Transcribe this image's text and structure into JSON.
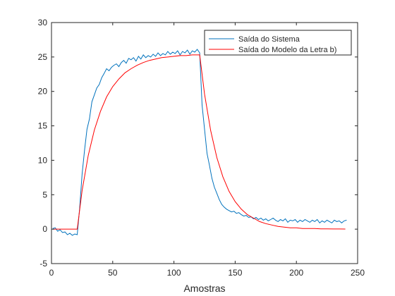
{
  "chart_data": {
    "type": "line",
    "title": "",
    "xlabel": "Amostras",
    "ylabel": "",
    "xlim": [
      0,
      250
    ],
    "ylim": [
      -5,
      30
    ],
    "xticks": [
      0,
      50,
      100,
      150,
      200,
      250
    ],
    "yticks": [
      -5,
      0,
      5,
      10,
      15,
      20,
      25,
      30
    ],
    "grid": false,
    "legend_position": "top-right",
    "series": [
      {
        "name": "Saída do Sistema",
        "color": "#0072BD",
        "x": [
          1,
          3,
          5,
          7,
          9,
          11,
          13,
          15,
          17,
          19,
          21,
          23,
          25,
          27,
          29,
          31,
          33,
          35,
          37,
          39,
          41,
          43,
          45,
          47,
          49,
          51,
          53,
          55,
          57,
          59,
          61,
          63,
          65,
          67,
          69,
          71,
          73,
          75,
          77,
          79,
          81,
          83,
          85,
          87,
          89,
          91,
          93,
          95,
          97,
          99,
          101,
          103,
          105,
          107,
          109,
          111,
          113,
          115,
          117,
          119,
          121,
          123,
          125,
          127,
          129,
          131,
          133,
          135,
          137,
          139,
          141,
          143,
          145,
          147,
          149,
          151,
          153,
          155,
          157,
          159,
          161,
          163,
          165,
          167,
          169,
          171,
          173,
          175,
          177,
          179,
          181,
          183,
          185,
          187,
          189,
          191,
          193,
          195,
          197,
          199,
          201,
          203,
          205,
          207,
          209,
          211,
          213,
          215,
          217,
          219,
          221,
          223,
          225,
          227,
          229,
          231,
          233,
          235,
          237,
          239,
          241
        ],
        "y": [
          0.1,
          0.2,
          -0.3,
          -0.1,
          -0.5,
          -0.4,
          -0.8,
          -0.6,
          -0.9,
          -0.7,
          -0.8,
          3.0,
          8.0,
          11.5,
          14.5,
          16.0,
          18.5,
          19.5,
          20.5,
          21.0,
          22.0,
          22.6,
          23.3,
          23.0,
          23.5,
          23.8,
          24.0,
          23.6,
          24.2,
          24.5,
          24.1,
          24.8,
          24.6,
          24.9,
          24.4,
          25.1,
          24.7,
          25.3,
          24.9,
          25.2,
          25.0,
          25.4,
          25.1,
          25.6,
          25.2,
          25.5,
          25.3,
          25.8,
          25.4,
          25.7,
          25.5,
          25.9,
          25.3,
          25.8,
          25.6,
          26.0,
          25.4,
          25.9,
          25.7,
          26.1,
          25.6,
          18.0,
          14.5,
          11.0,
          9.3,
          7.4,
          6.1,
          5.2,
          4.3,
          3.6,
          3.2,
          2.9,
          2.7,
          2.5,
          2.6,
          2.3,
          2.4,
          2.1,
          1.9,
          2.0,
          1.7,
          1.8,
          1.5,
          1.7,
          1.4,
          1.6,
          1.3,
          1.5,
          1.2,
          1.4,
          1.6,
          1.3,
          1.1,
          1.4,
          1.2,
          1.5,
          1.0,
          1.3,
          1.2,
          1.4,
          1.0,
          1.3,
          1.1,
          1.4,
          1.2,
          1.0,
          1.3,
          1.1,
          1.4,
          0.9,
          1.2,
          1.0,
          1.3,
          1.1,
          0.9,
          1.3,
          1.1,
          1.2,
          0.9,
          1.2,
          1.3
        ]
      },
      {
        "name": "Saída do Modelo da Letra b)",
        "color": "#FF0000",
        "x": [
          1,
          5,
          10,
          15,
          20,
          21,
          25,
          30,
          35,
          40,
          45,
          50,
          55,
          60,
          65,
          70,
          75,
          80,
          85,
          90,
          95,
          100,
          105,
          110,
          115,
          120,
          121,
          125,
          130,
          135,
          140,
          145,
          150,
          155,
          160,
          165,
          170,
          175,
          180,
          185,
          190,
          195,
          200,
          205,
          210,
          215,
          220,
          225,
          230,
          235,
          240
        ],
        "y": [
          0,
          0,
          0,
          0,
          0,
          0,
          5.6,
          10.7,
          14.4,
          17.1,
          19.2,
          20.7,
          21.8,
          22.7,
          23.3,
          23.8,
          24.2,
          24.5,
          24.7,
          24.9,
          25.0,
          25.1,
          25.2,
          25.2,
          25.3,
          25.3,
          25.3,
          19.6,
          14.3,
          10.4,
          7.6,
          5.5,
          4.0,
          2.9,
          2.1,
          1.6,
          1.1,
          0.8,
          0.6,
          0.4,
          0.3,
          0.2,
          0.2,
          0.1,
          0.1,
          0.1,
          0.05,
          0.03,
          0.02,
          0.02,
          0.01
        ]
      }
    ]
  }
}
